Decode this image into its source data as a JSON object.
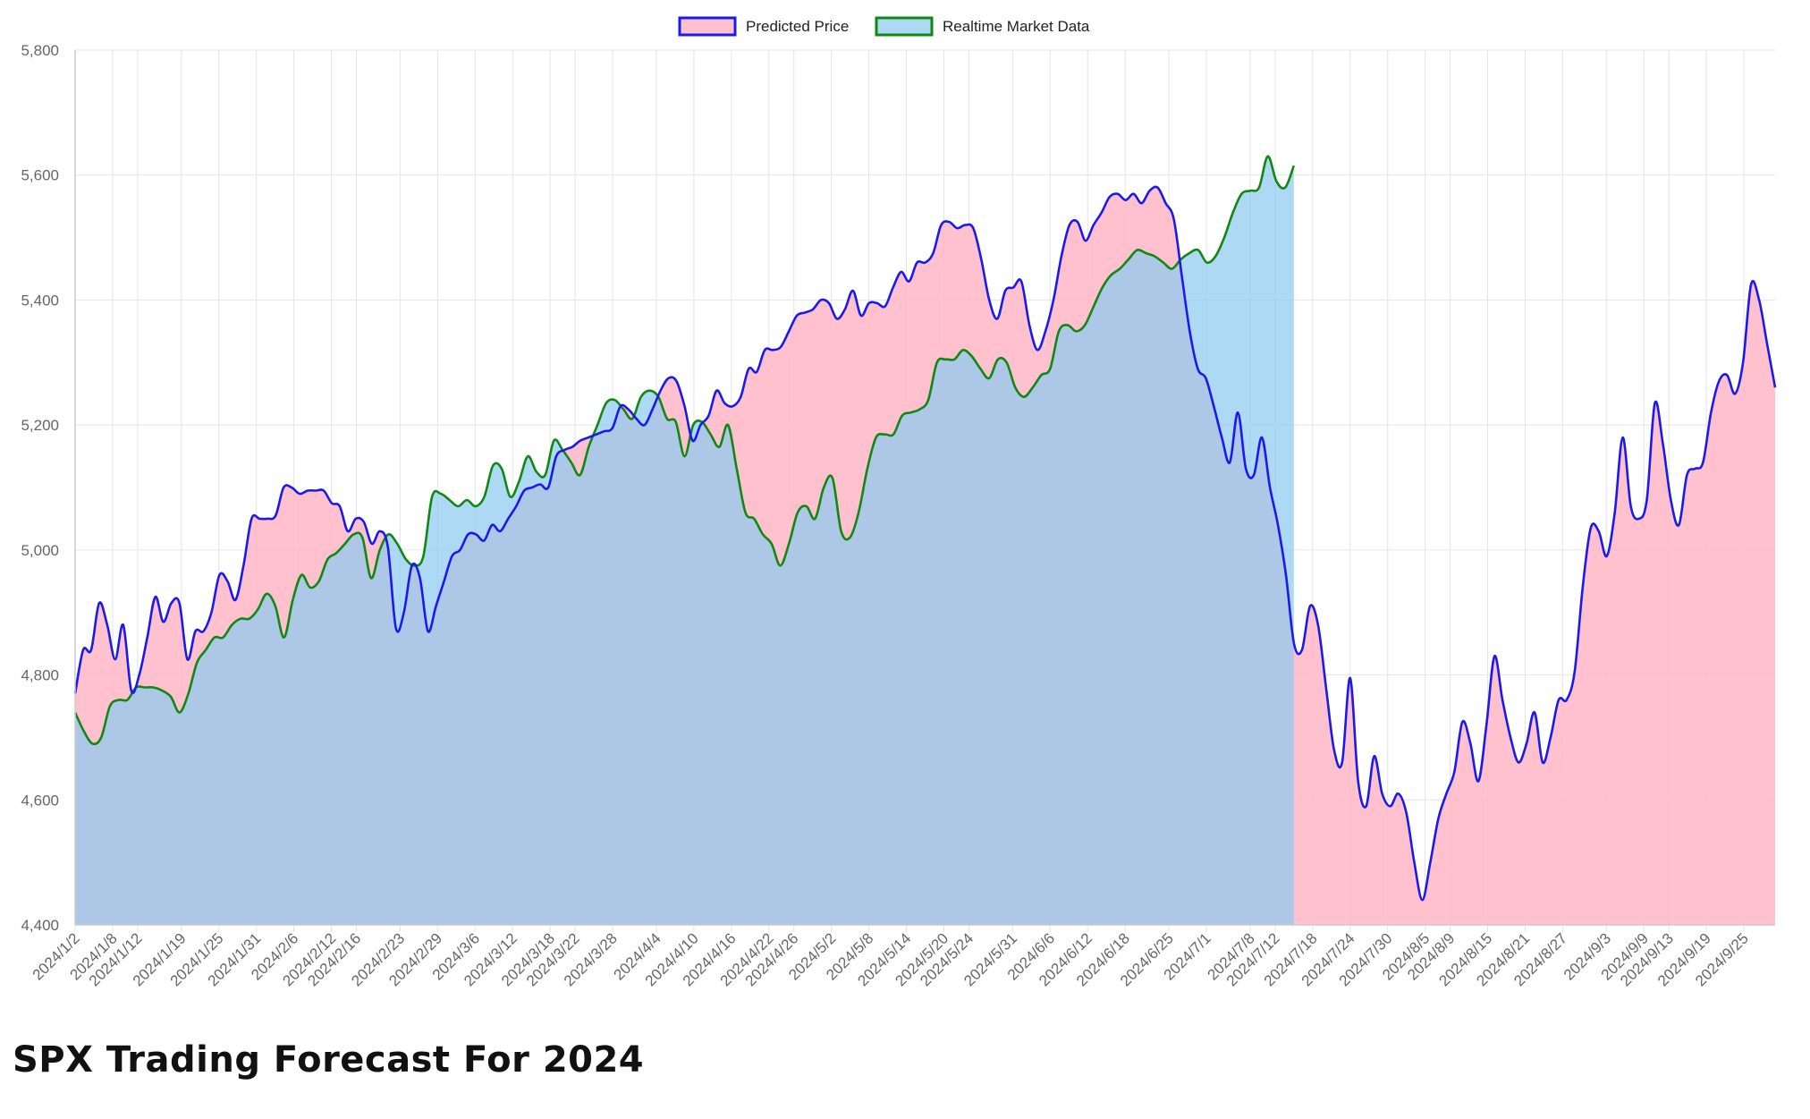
{
  "page": {
    "title": "SPX Trading Forecast For 2024"
  },
  "colors": {
    "predicted_stroke": "#1a1aee",
    "predicted_fill": "rgba(255,182,198,0.85)",
    "market_stroke": "#118811",
    "market_fill": "rgba(142,202,240,0.72)",
    "grid": "#e4e4e4",
    "axis": "#cccccc"
  },
  "chart_data": {
    "type": "area",
    "title": "",
    "xlabel": "",
    "ylabel": "",
    "ylim": [
      4400,
      5800
    ],
    "ytick_step": 200,
    "y_tick_labels": [
      "4,400",
      "4,600",
      "4,800",
      "5,000",
      "5,200",
      "5,400",
      "5,600",
      "5,800"
    ],
    "grid": true,
    "legend_position": "top-center",
    "x_tick_labels": [
      "2024/1/2",
      "2024/1/8",
      "2024/1/12",
      "2024/1/19",
      "2024/1/25",
      "2024/1/31",
      "2024/2/6",
      "2024/2/12",
      "2024/2/16",
      "2024/2/23",
      "2024/2/29",
      "2024/3/6",
      "2024/3/12",
      "2024/3/18",
      "2024/3/22",
      "2024/3/28",
      "2024/4/4",
      "2024/4/10",
      "2024/4/16",
      "2024/4/22",
      "2024/4/26",
      "2024/5/2",
      "2024/5/8",
      "2024/5/14",
      "2024/5/20",
      "2024/5/24",
      "2024/5/31",
      "2024/6/6",
      "2024/6/12",
      "2024/6/18",
      "2024/6/25",
      "2024/7/1",
      "2024/7/8",
      "2024/7/12",
      "2024/7/18",
      "2024/7/24",
      "2024/7/30",
      "2024/8/5",
      "2024/8/9",
      "2024/8/15",
      "2024/8/21",
      "2024/8/27",
      "2024/9/3",
      "2024/9/9",
      "2024/9/13",
      "2024/9/19",
      "2024/9/25"
    ],
    "series": [
      {
        "name": "Predicted Price",
        "x_start": "2024/1/2",
        "x_end": "2024/9/30",
        "values": [
          4770,
          4840,
          4840,
          4915,
          4880,
          4825,
          4880,
          4775,
          4800,
          4860,
          4925,
          4885,
          4915,
          4915,
          4825,
          4870,
          4870,
          4900,
          4960,
          4950,
          4920,
          4975,
          5050,
          5050,
          5050,
          5055,
          5100,
          5100,
          5090,
          5095,
          5095,
          5095,
          5075,
          5070,
          5030,
          5050,
          5045,
          5010,
          5030,
          5005,
          4875,
          4900,
          4975,
          4955,
          4870,
          4910,
          4950,
          4990,
          5000,
          5025,
          5025,
          5015,
          5040,
          5030,
          5050,
          5070,
          5095,
          5100,
          5105,
          5100,
          5150,
          5160,
          5165,
          5175,
          5180,
          5185,
          5190,
          5195,
          5230,
          5225,
          5210,
          5200,
          5225,
          5255,
          5275,
          5270,
          5230,
          5175,
          5200,
          5215,
          5255,
          5235,
          5230,
          5245,
          5290,
          5285,
          5320,
          5320,
          5325,
          5350,
          5375,
          5380,
          5385,
          5400,
          5395,
          5370,
          5385,
          5415,
          5375,
          5395,
          5395,
          5390,
          5420,
          5445,
          5430,
          5460,
          5460,
          5475,
          5520,
          5525,
          5515,
          5520,
          5515,
          5465,
          5400,
          5370,
          5415,
          5420,
          5430,
          5360,
          5320,
          5350,
          5400,
          5470,
          5520,
          5525,
          5495,
          5520,
          5540,
          5565,
          5570,
          5560,
          5570,
          5555,
          5575,
          5580,
          5555,
          5530,
          5440,
          5350,
          5290,
          5275,
          5230,
          5180,
          5140,
          5220,
          5130,
          5120,
          5180,
          5100,
          5040,
          4960,
          4850,
          4840,
          4910,
          4880,
          4780,
          4680,
          4660,
          4795,
          4630,
          4590,
          4670,
          4610,
          4590,
          4610,
          4580,
          4500,
          4440,
          4500,
          4570,
          4610,
          4645,
          4725,
          4690,
          4630,
          4720,
          4830,
          4760,
          4700,
          4660,
          4690,
          4740,
          4660,
          4700,
          4760,
          4760,
          4805,
          4940,
          5035,
          5030,
          4990,
          5060,
          5180,
          5070,
          5050,
          5080,
          5235,
          5170,
          5080,
          5040,
          5120,
          5130,
          5140,
          5220,
          5270,
          5280,
          5250,
          5300,
          5425,
          5400,
          5330,
          5260
        ]
      },
      {
        "name": "Realtime Market Data",
        "x_start": "2024/1/2",
        "x_end": "2024/7/15",
        "values": [
          4740,
          4710,
          4690,
          4700,
          4750,
          4760,
          4760,
          4780,
          4780,
          4780,
          4775,
          4765,
          4740,
          4770,
          4820,
          4840,
          4860,
          4860,
          4880,
          4890,
          4890,
          4905,
          4930,
          4910,
          4860,
          4920,
          4960,
          4940,
          4950,
          4985,
          4995,
          5010,
          5025,
          5020,
          4955,
          5000,
          5025,
          5010,
          4985,
          4975,
          4990,
          5085,
          5090,
          5080,
          5070,
          5080,
          5070,
          5085,
          5135,
          5130,
          5085,
          5110,
          5150,
          5125,
          5120,
          5175,
          5160,
          5140,
          5120,
          5165,
          5200,
          5235,
          5240,
          5225,
          5210,
          5245,
          5255,
          5245,
          5210,
          5205,
          5150,
          5200,
          5205,
          5185,
          5165,
          5200,
          5130,
          5060,
          5050,
          5025,
          5010,
          4975,
          5010,
          5060,
          5070,
          5050,
          5100,
          5115,
          5030,
          5020,
          5060,
          5130,
          5180,
          5185,
          5185,
          5215,
          5220,
          5225,
          5240,
          5300,
          5305,
          5305,
          5320,
          5310,
          5290,
          5275,
          5305,
          5300,
          5260,
          5245,
          5260,
          5280,
          5290,
          5350,
          5360,
          5350,
          5360,
          5390,
          5420,
          5440,
          5450,
          5465,
          5480,
          5475,
          5470,
          5460,
          5450,
          5465,
          5475,
          5480,
          5460,
          5470,
          5500,
          5540,
          5570,
          5575,
          5580,
          5630,
          5590,
          5580,
          5615
        ]
      }
    ]
  }
}
